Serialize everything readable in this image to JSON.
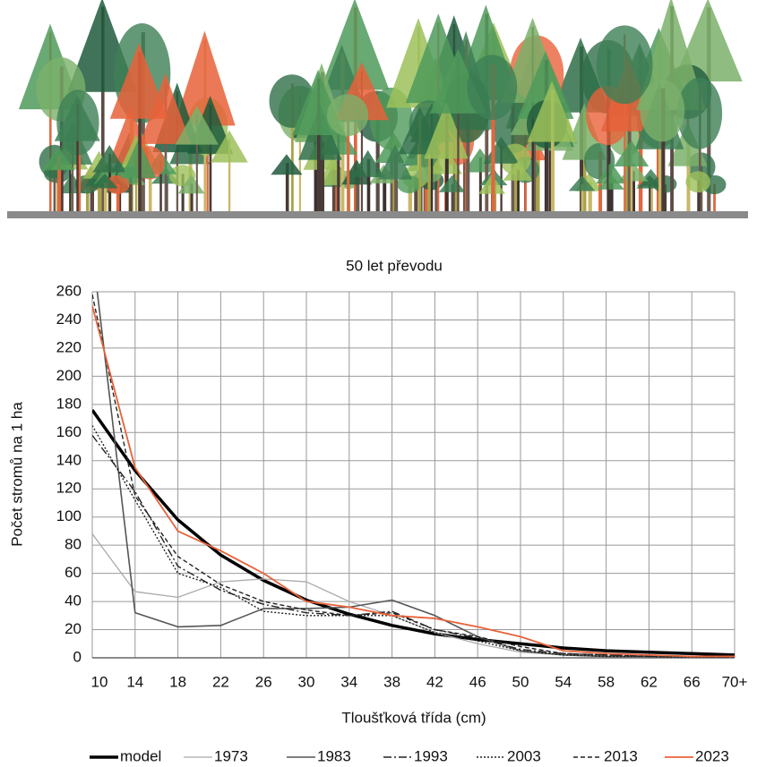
{
  "chart_data": {
    "type": "line",
    "title": "50 let převodu",
    "x_label": "Tloušťková třída (cm)",
    "y_label": "Počet stromů na 1 ha",
    "categories": [
      "10",
      "14",
      "18",
      "22",
      "26",
      "30",
      "34",
      "38",
      "42",
      "46",
      "50",
      "54",
      "58",
      "62",
      "66",
      "70+"
    ],
    "ylim": [
      0,
      260
    ],
    "yticks": [
      0,
      20,
      40,
      60,
      80,
      100,
      120,
      140,
      160,
      180,
      200,
      220,
      240,
      260
    ],
    "grid": true,
    "series": [
      {
        "name": "model",
        "color": "#000000",
        "values": [
          176,
          133,
          98,
          73,
          55,
          41,
          31,
          23,
          17,
          13,
          10,
          7,
          5,
          4,
          3,
          2
        ]
      },
      {
        "name": "1973",
        "color": "#aaaaaa",
        "values": [
          88,
          47,
          43,
          54,
          56,
          54,
          40,
          30,
          18,
          10,
          4,
          2,
          1,
          1,
          0,
          0
        ]
      },
      {
        "name": "1983",
        "color": "#555555",
        "values": [
          290,
          32,
          22,
          23,
          35,
          35,
          36,
          41,
          30,
          15,
          5,
          2,
          1,
          1,
          0,
          0
        ]
      },
      {
        "name": "1993",
        "color": "#222222",
        "values": [
          158,
          118,
          65,
          48,
          38,
          32,
          30,
          33,
          20,
          14,
          6,
          3,
          2,
          1,
          1,
          0
        ]
      },
      {
        "name": "2003",
        "color": "#222222",
        "values": [
          165,
          112,
          60,
          50,
          33,
          30,
          30,
          30,
          18,
          12,
          5,
          2,
          1,
          1,
          0,
          0
        ]
      },
      {
        "name": "2013",
        "color": "#222222",
        "values": [
          258,
          115,
          72,
          52,
          40,
          34,
          30,
          32,
          20,
          15,
          8,
          3,
          2,
          1,
          1,
          0
        ]
      },
      {
        "name": "2023",
        "color": "#e8623a",
        "values": [
          250,
          135,
          90,
          76,
          60,
          40,
          36,
          30,
          28,
          22,
          15,
          5,
          3,
          2,
          1,
          1
        ]
      }
    ]
  }
}
